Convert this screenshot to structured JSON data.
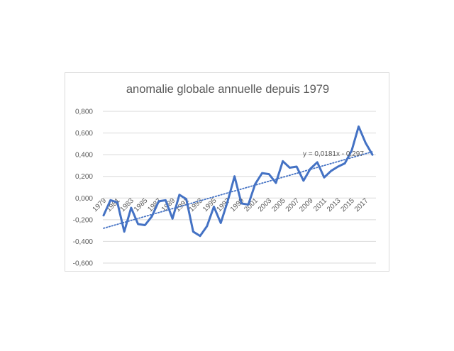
{
  "chart_data": {
    "type": "line",
    "title": "anomalie globale annuelle depuis 1979",
    "xlabel": "",
    "ylabel": "",
    "ylim": [
      -0.6,
      0.8
    ],
    "ytick_labels": [
      "-0,600",
      "-0,400",
      "-0,200",
      "0,000",
      "0,200",
      "0,400",
      "0,600",
      "0,800"
    ],
    "ytick_values": [
      -0.6,
      -0.4,
      -0.2,
      0.0,
      0.2,
      0.4,
      0.6,
      0.8
    ],
    "x": [
      1979,
      1980,
      1981,
      1982,
      1983,
      1984,
      1985,
      1986,
      1987,
      1988,
      1989,
      1990,
      1991,
      1992,
      1993,
      1994,
      1995,
      1996,
      1997,
      1998,
      1999,
      2000,
      2001,
      2002,
      2003,
      2004,
      2005,
      2006,
      2007,
      2008,
      2009,
      2010,
      2011,
      2012,
      2013,
      2014,
      2015,
      2016,
      2017,
      2018
    ],
    "xtick_labels": [
      "1979",
      "1981",
      "1983",
      "1985",
      "1987",
      "1989",
      "1991",
      "1993",
      "1995",
      "1997",
      "1999",
      "2001",
      "2003",
      "2005",
      "2007",
      "2009",
      "2011",
      "2013",
      "2015",
      "2017"
    ],
    "series": [
      {
        "color": "#4472c4",
        "values": [
          -0.16,
          -0.02,
          -0.04,
          -0.31,
          -0.09,
          -0.24,
          -0.25,
          -0.17,
          -0.03,
          -0.02,
          -0.19,
          0.03,
          -0.01,
          -0.31,
          -0.35,
          -0.26,
          -0.08,
          -0.23,
          -0.03,
          0.2,
          -0.05,
          -0.06,
          0.13,
          0.23,
          0.22,
          0.14,
          0.34,
          0.28,
          0.29,
          0.16,
          0.27,
          0.33,
          0.19,
          0.25,
          0.29,
          0.32,
          0.44,
          0.66,
          0.51,
          0.4
        ]
      }
    ],
    "trendline": {
      "type": "linear",
      "equation": "y = 0,0181x - 0,297",
      "slope": 0.0181,
      "intercept": -0.297,
      "style": "dotted",
      "color": "#4472c4"
    },
    "grid": true,
    "legend": "none"
  }
}
